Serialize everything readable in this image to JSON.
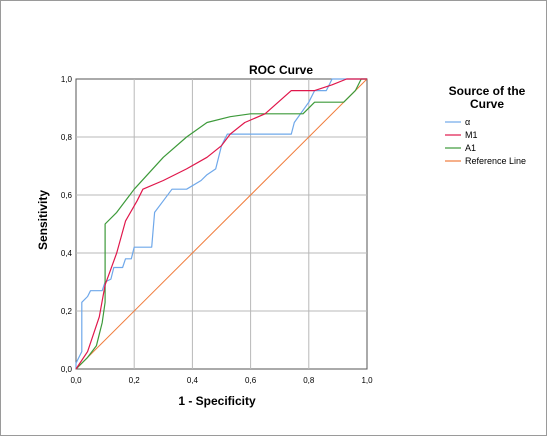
{
  "chart_data": {
    "type": "line",
    "title": "ROC Curve",
    "xlabel": "1 - Specificity",
    "ylabel": "Sensitivity",
    "xlim": [
      0,
      1
    ],
    "ylim": [
      0,
      1
    ],
    "x_ticks": [
      "0,0",
      "0,2",
      "0,4",
      "0,6",
      "0,8",
      "1,0"
    ],
    "y_ticks": [
      "0,0",
      "0,2",
      "0,4",
      "0,6",
      "0,8",
      "1,0"
    ],
    "grid": true,
    "legend": {
      "title": "Source of the Curve",
      "placement": "right"
    },
    "series": [
      {
        "name": "α",
        "color": "#6fa8ea",
        "points": [
          [
            0,
            0
          ],
          [
            0,
            0.02
          ],
          [
            0.01,
            0.04
          ],
          [
            0.02,
            0.06
          ],
          [
            0.02,
            0.23
          ],
          [
            0.04,
            0.25
          ],
          [
            0.05,
            0.27
          ],
          [
            0.09,
            0.27
          ],
          [
            0.1,
            0.3
          ],
          [
            0.12,
            0.31
          ],
          [
            0.13,
            0.35
          ],
          [
            0.16,
            0.35
          ],
          [
            0.17,
            0.38
          ],
          [
            0.19,
            0.38
          ],
          [
            0.2,
            0.42
          ],
          [
            0.26,
            0.42
          ],
          [
            0.27,
            0.54
          ],
          [
            0.3,
            0.58
          ],
          [
            0.33,
            0.62
          ],
          [
            0.38,
            0.62
          ],
          [
            0.43,
            0.65
          ],
          [
            0.45,
            0.67
          ],
          [
            0.48,
            0.69
          ],
          [
            0.5,
            0.77
          ],
          [
            0.52,
            0.81
          ],
          [
            0.58,
            0.81
          ],
          [
            0.74,
            0.81
          ],
          [
            0.75,
            0.85
          ],
          [
            0.8,
            0.92
          ],
          [
            0.82,
            0.96
          ],
          [
            0.86,
            0.96
          ],
          [
            0.88,
            1.0
          ],
          [
            1.0,
            1.0
          ]
        ]
      },
      {
        "name": "M1",
        "color": "#e0174b",
        "points": [
          [
            0,
            0
          ],
          [
            0.04,
            0.06
          ],
          [
            0.08,
            0.18
          ],
          [
            0.1,
            0.29
          ],
          [
            0.14,
            0.4
          ],
          [
            0.17,
            0.51
          ],
          [
            0.21,
            0.58
          ],
          [
            0.23,
            0.62
          ],
          [
            0.3,
            0.65
          ],
          [
            0.38,
            0.69
          ],
          [
            0.45,
            0.73
          ],
          [
            0.5,
            0.77
          ],
          [
            0.53,
            0.81
          ],
          [
            0.58,
            0.85
          ],
          [
            0.65,
            0.88
          ],
          [
            0.74,
            0.96
          ],
          [
            0.82,
            0.96
          ],
          [
            0.88,
            0.98
          ],
          [
            0.93,
            1.0
          ],
          [
            1.0,
            1.0
          ]
        ]
      },
      {
        "name": "A1",
        "color": "#3d9a3a",
        "points": [
          [
            0,
            0
          ],
          [
            0.04,
            0.04
          ],
          [
            0.07,
            0.08
          ],
          [
            0.08,
            0.12
          ],
          [
            0.09,
            0.16
          ],
          [
            0.1,
            0.23
          ],
          [
            0.1,
            0.5
          ],
          [
            0.14,
            0.54
          ],
          [
            0.2,
            0.62
          ],
          [
            0.3,
            0.73
          ],
          [
            0.38,
            0.8
          ],
          [
            0.45,
            0.85
          ],
          [
            0.53,
            0.87
          ],
          [
            0.6,
            0.88
          ],
          [
            0.78,
            0.88
          ],
          [
            0.82,
            0.92
          ],
          [
            0.92,
            0.92
          ],
          [
            0.96,
            0.96
          ],
          [
            0.98,
            1.0
          ],
          [
            1.0,
            1.0
          ]
        ]
      },
      {
        "name": "Reference Line",
        "color": "#f07c3c",
        "points": [
          [
            0,
            0
          ],
          [
            1,
            1
          ]
        ]
      }
    ]
  }
}
